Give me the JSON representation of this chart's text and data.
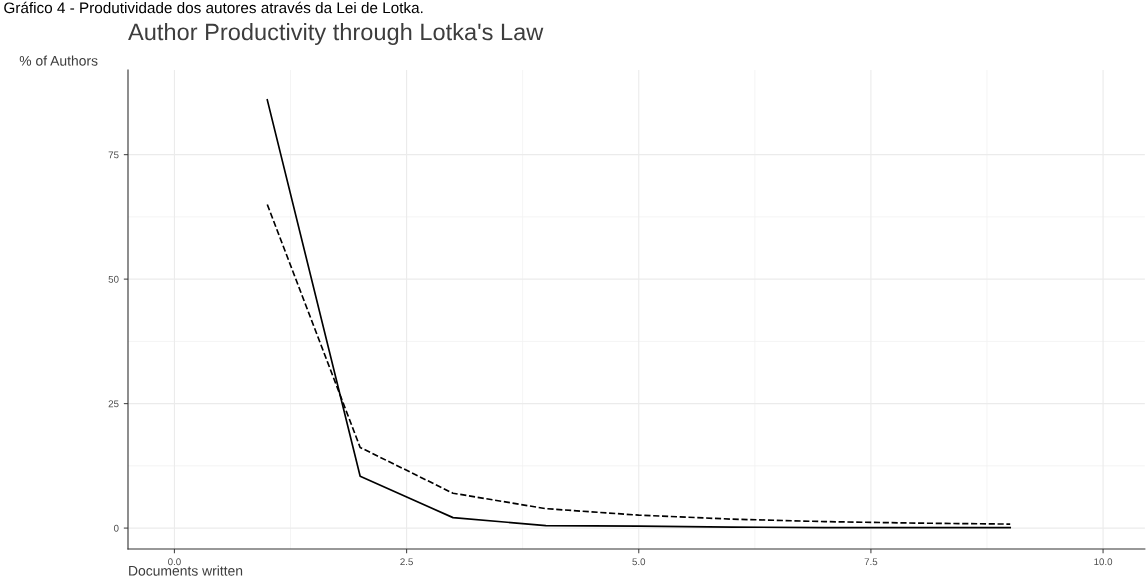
{
  "chart_data": {
    "type": "line",
    "title": "Author Productivity through Lotka's Law",
    "xlabel": "Documents written",
    "ylabel": "% of Authors",
    "annotations": [
      "Gráfico 4 - Produtividade dos autores através da Lei de Lotka."
    ],
    "x": [
      1,
      2,
      3,
      4,
      5,
      6,
      7,
      8,
      9
    ],
    "series": [
      {
        "color": "#000000",
        "line_style": "solid",
        "values": [
          86,
          10.4,
          2.1,
          0.5,
          0.4,
          0.2,
          0.1,
          0.1,
          0.1
        ]
      },
      {
        "color": "#000000",
        "line_style": "dashed",
        "values": [
          65,
          16.2,
          7.0,
          3.9,
          2.6,
          1.8,
          1.3,
          1.0,
          0.8
        ]
      }
    ],
    "xlim": [
      -0.5,
      10.45
    ],
    "ylim": [
      -4.2,
      92
    ],
    "xticks": [
      {
        "value": 0,
        "label": "0.0"
      },
      {
        "value": 2.5,
        "label": "2.5"
      },
      {
        "value": 5,
        "label": "5.0"
      },
      {
        "value": 7.5,
        "label": "7.5"
      },
      {
        "value": 10,
        "label": "10.0"
      }
    ],
    "yticks": [
      0,
      25,
      50,
      75
    ],
    "grid": true,
    "marker": "none"
  }
}
